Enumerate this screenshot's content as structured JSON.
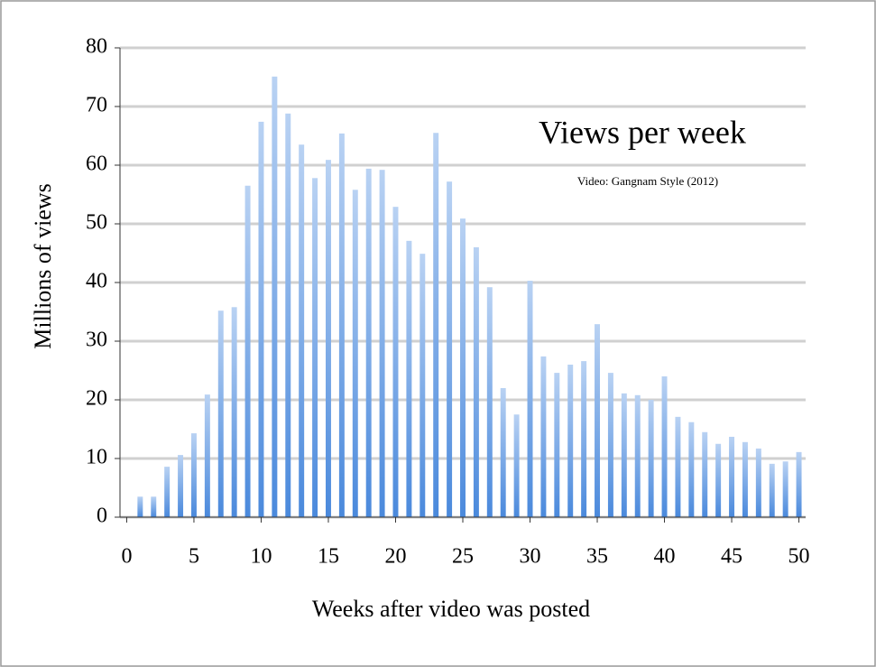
{
  "chart_data": {
    "type": "bar",
    "title": "Views per week",
    "subtitle": "Video: Gangnam Style (2012)",
    "x_label": "Weeks after video was posted",
    "y_label": "Millions of views",
    "x": [
      1,
      2,
      3,
      4,
      5,
      6,
      7,
      8,
      9,
      10,
      11,
      12,
      13,
      14,
      15,
      16,
      17,
      18,
      19,
      20,
      21,
      22,
      23,
      24,
      25,
      26,
      27,
      28,
      29,
      30,
      31,
      32,
      33,
      34,
      35,
      36,
      37,
      38,
      39,
      40,
      41,
      42,
      43,
      44,
      45,
      46,
      47,
      48,
      49,
      50
    ],
    "values": [
      3.5,
      3.5,
      8.6,
      10.6,
      14.3,
      20.9,
      35.2,
      35.8,
      56.5,
      67.4,
      75.1,
      68.8,
      63.5,
      57.8,
      60.9,
      65.4,
      55.8,
      59.4,
      59.2,
      52.9,
      47.1,
      44.9,
      65.5,
      57.2,
      50.9,
      46,
      39.2,
      22,
      17.5,
      40.3,
      27.4,
      24.6,
      26,
      26.6,
      32.9,
      24.6,
      21.1,
      20.8,
      20,
      24,
      17.1,
      16.2,
      14.5,
      12.5,
      13.7,
      12.8,
      11.7,
      9.1,
      9.5,
      11.1
    ],
    "color": "#4a89dc",
    "xlim": [
      -0.5,
      50.5
    ],
    "xticks": [
      0,
      5,
      10,
      15,
      20,
      25,
      30,
      35,
      40,
      45,
      50
    ],
    "ylim": [
      0,
      80
    ],
    "yticks": [
      0,
      10,
      20,
      30,
      40,
      50,
      60,
      70,
      80
    ],
    "grid": true
  }
}
